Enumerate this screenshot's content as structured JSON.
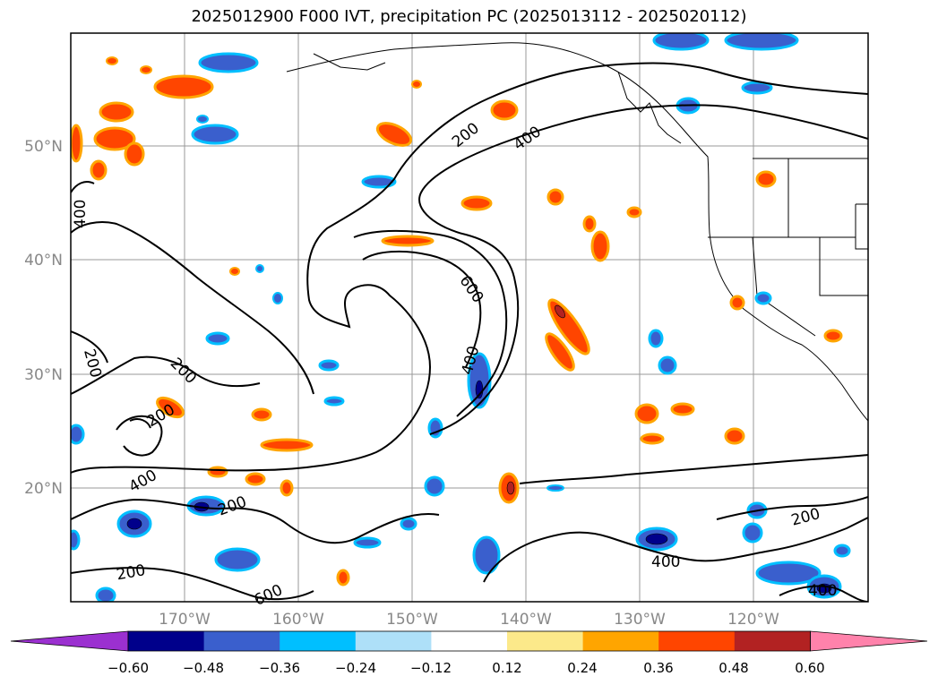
{
  "title": "2025012900 F000 IVT, precipitation PC (2025013112 - 2025020112)",
  "lat_labels": [
    "50°N",
    "40°N",
    "30°N",
    "20°N"
  ],
  "lon_labels": [
    "170°W",
    "160°W",
    "150°W",
    "140°W",
    "130°W",
    "120°W"
  ],
  "contour_labels": [
    "200",
    "400",
    "600",
    "400",
    "200",
    "400",
    "200",
    "200",
    "400",
    "200",
    "400",
    "200",
    "600",
    "400"
  ],
  "colorbar": {
    "tick_labels": [
      "−0.60",
      "−0.48",
      "−0.36",
      "−0.24",
      "−0.12",
      "0.12",
      "0.24",
      "0.36",
      "0.48",
      "0.60"
    ],
    "colors": [
      "#9b30d0",
      "#00008b",
      "#3a5fcd",
      "#00bfff",
      "#aee0f8",
      "#ffffff",
      "#fce98a",
      "#ffa500",
      "#ff4500",
      "#b22222",
      "#ff82ab"
    ]
  }
}
